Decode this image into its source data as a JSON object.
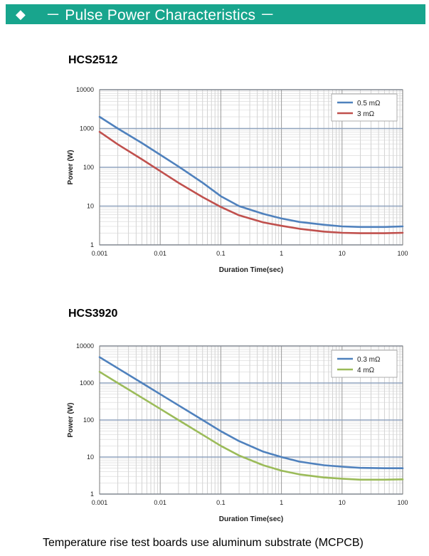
{
  "header": {
    "icon": "diamond-icon",
    "title": "－ Pulse Power Characteristics －",
    "background": "#18a58d"
  },
  "charts": [
    {
      "title": "HCS2512"
    },
    {
      "title": "HCS3920"
    }
  ],
  "footer": {
    "text": "Temperature rise test boards use aluminum substrate (MCPCB)"
  },
  "chart_data": [
    {
      "type": "line",
      "title": "HCS2512",
      "xlabel": "Duration Time(sec)",
      "ylabel": "Power (W)",
      "xscale": "log",
      "yscale": "log",
      "xlim": [
        0.001,
        100
      ],
      "ylim": [
        1,
        10000
      ],
      "xticks": [
        "0.001",
        "0.01",
        "0.1",
        "1",
        "10",
        "100"
      ],
      "yticks": [
        "1",
        "10",
        "100",
        "1000",
        "10000"
      ],
      "grid": true,
      "legend": "top-right",
      "series": [
        {
          "name": "0.5 mΩ",
          "color": "#4f81bd",
          "x": [
            0.001,
            0.002,
            0.005,
            0.01,
            0.02,
            0.05,
            0.1,
            0.2,
            0.5,
            1,
            2,
            5,
            10,
            20,
            50,
            100
          ],
          "y": [
            2000,
            1000,
            420,
            210,
            105,
            40,
            18,
            10,
            6.3,
            4.8,
            3.9,
            3.3,
            3.0,
            2.9,
            2.9,
            3.0
          ]
        },
        {
          "name": "3 mΩ",
          "color": "#c0504d",
          "x": [
            0.001,
            0.002,
            0.005,
            0.01,
            0.02,
            0.05,
            0.1,
            0.2,
            0.5,
            1,
            2,
            5,
            10,
            20,
            50,
            100
          ],
          "y": [
            820,
            390,
            160,
            80,
            40,
            17,
            9.5,
            5.8,
            3.8,
            3.1,
            2.6,
            2.2,
            2.05,
            2.0,
            2.0,
            2.05
          ]
        }
      ]
    },
    {
      "type": "line",
      "title": "HCS3920",
      "xlabel": "Duration Time(sec)",
      "ylabel": "Power (W)",
      "xscale": "log",
      "yscale": "log",
      "xlim": [
        0.001,
        100
      ],
      "ylim": [
        1,
        10000
      ],
      "xticks": [
        "0.001",
        "0.01",
        "0.1",
        "1",
        "10",
        "100"
      ],
      "yticks": [
        "1",
        "10",
        "100",
        "1000",
        "10000"
      ],
      "grid": true,
      "legend": "top-right",
      "series": [
        {
          "name": "0.3 mΩ",
          "color": "#4f81bd",
          "x": [
            0.001,
            0.002,
            0.005,
            0.01,
            0.02,
            0.05,
            0.1,
            0.2,
            0.5,
            1,
            2,
            5,
            10,
            20,
            50,
            100
          ],
          "y": [
            5000,
            2500,
            1000,
            500,
            250,
            100,
            50,
            27,
            14,
            10,
            7.5,
            6.0,
            5.5,
            5.1,
            5.0,
            5.0
          ]
        },
        {
          "name": "4 mΩ",
          "color": "#9bbb59",
          "x": [
            0.001,
            0.002,
            0.005,
            0.01,
            0.02,
            0.05,
            0.1,
            0.2,
            0.5,
            1,
            2,
            5,
            10,
            20,
            50,
            100
          ],
          "y": [
            2000,
            1000,
            400,
            200,
            100,
            40,
            20,
            11,
            6.0,
            4.3,
            3.4,
            2.8,
            2.6,
            2.45,
            2.45,
            2.5
          ]
        }
      ]
    }
  ]
}
